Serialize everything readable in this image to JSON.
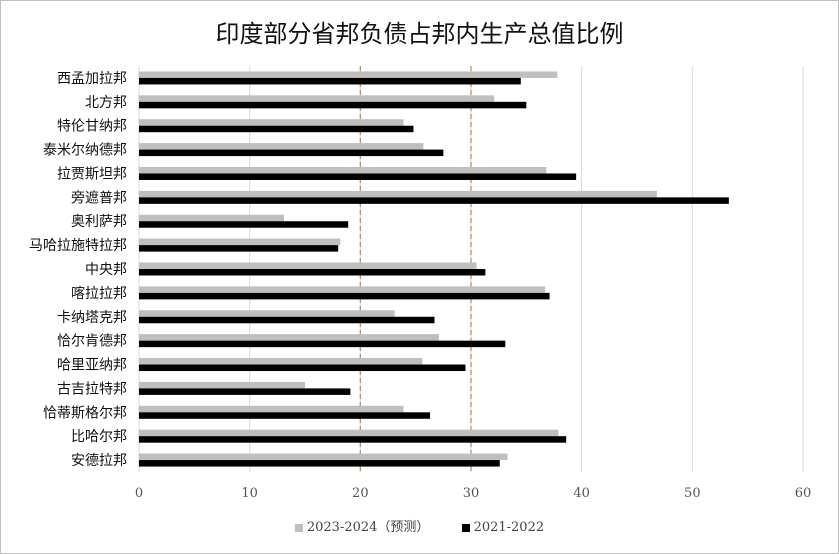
{
  "chart_data": {
    "type": "bar",
    "orientation": "horizontal",
    "title": "印度部分省邦负债占邦内生产总值比例",
    "categories": [
      "西孟加拉邦",
      "北方邦",
      "特伦甘纳邦",
      "泰米尔纳德邦",
      "拉贾斯坦邦",
      "旁遮普邦",
      "奥利萨邦",
      "马哈拉施特拉邦",
      "中央邦",
      "喀拉拉邦",
      "卡纳塔克邦",
      "恰尔肯德邦",
      "哈里亚纳邦",
      "古吉拉特邦",
      "恰蒂斯格尔邦",
      "比哈尔邦",
      "安德拉邦"
    ],
    "series": [
      {
        "name": "2023-2024（预测）",
        "color": "#bfbfbf",
        "values": [
          37.8,
          32.1,
          23.9,
          25.7,
          36.8,
          46.8,
          13.1,
          18.2,
          30.5,
          36.7,
          23.1,
          27.1,
          25.6,
          15.0,
          23.9,
          37.9,
          33.3
        ]
      },
      {
        "name": "2021-2022",
        "color": "#000000",
        "values": [
          34.5,
          35.0,
          24.8,
          27.5,
          39.5,
          53.3,
          18.9,
          18.0,
          31.3,
          37.1,
          26.7,
          33.1,
          29.5,
          19.1,
          26.3,
          38.6,
          32.6
        ]
      }
    ],
    "xlim": [
      0,
      60
    ],
    "xticks": [
      0,
      10,
      20,
      30,
      40,
      50,
      60
    ],
    "reference_lines": [
      20,
      30
    ],
    "reference_line_color": "#d08a4e",
    "grid": true,
    "legend": "bottom"
  }
}
